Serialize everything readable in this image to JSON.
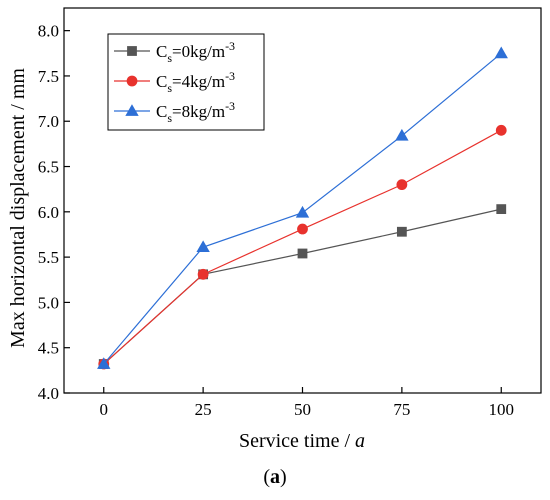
{
  "caption": {
    "open": "(",
    "letter": "a",
    "close": ")"
  },
  "chart_data": {
    "type": "line",
    "xlabel_main": "Service time / ",
    "xlabel_italic": "a",
    "ylabel": "Max horizontal displacement / mm",
    "x": [
      0,
      25,
      50,
      75,
      100
    ],
    "x_ticks": [
      0,
      25,
      50,
      75,
      100
    ],
    "y_ticks": [
      "4.0",
      "4.5",
      "5.0",
      "5.5",
      "6.0",
      "6.5",
      "7.0",
      "7.5",
      "8.0"
    ],
    "xlim": [
      -10,
      110
    ],
    "ylim": [
      4.0,
      8.25
    ],
    "grid": false,
    "legend_position": "top-left",
    "series": [
      {
        "name": "Cs=0kg/m-3",
        "label_parts": [
          "C",
          "s",
          "=0kg/m",
          "-3"
        ],
        "values": [
          4.32,
          5.31,
          5.54,
          5.78,
          6.03
        ],
        "color": "#555555",
        "marker": "square"
      },
      {
        "name": "Cs=4kg/m-3",
        "label_parts": [
          "C",
          "s",
          "=4kg/m",
          "-3"
        ],
        "values": [
          4.32,
          5.31,
          5.81,
          6.3,
          6.9
        ],
        "color": "#e8322d",
        "marker": "circle"
      },
      {
        "name": "Cs=8kg/m-3",
        "label_parts": [
          "C",
          "s",
          "=8kg/m",
          "-3"
        ],
        "values": [
          4.32,
          5.61,
          5.99,
          6.84,
          7.75
        ],
        "color": "#2d6fd6",
        "marker": "triangle"
      }
    ]
  }
}
